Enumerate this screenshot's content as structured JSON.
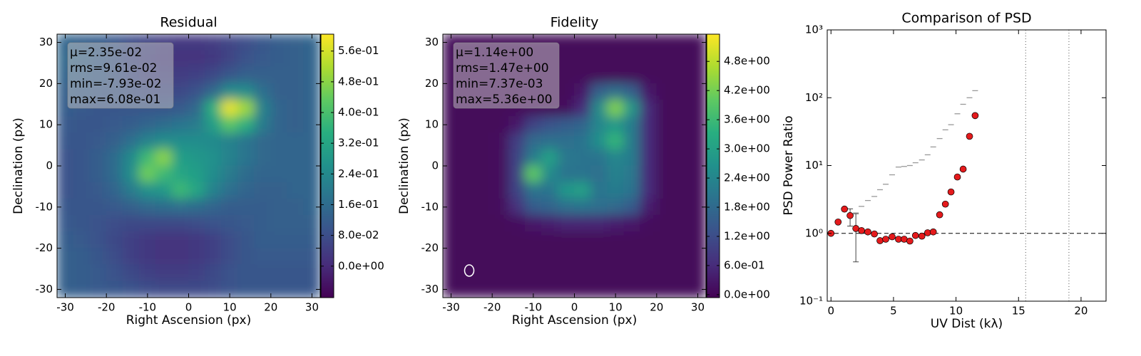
{
  "chart_data": [
    {
      "type": "heatmap",
      "title": "Residual",
      "xlabel": "Right Ascension (px)",
      "ylabel": "Declination (px)",
      "colormap": "viridis",
      "xlim": [
        -32,
        32
      ],
      "ylim": [
        -32,
        32
      ],
      "xticks": [
        -30,
        -20,
        -10,
        0,
        10,
        20,
        30
      ],
      "yticks": [
        -30,
        -20,
        -10,
        0,
        10,
        20,
        30
      ],
      "clim": [
        -0.082,
        0.604
      ],
      "cticks": [
        {
          "value": 0,
          "label": "0.0e+00"
        },
        {
          "value": 0.08,
          "label": "8.0e-02"
        },
        {
          "value": 0.16,
          "label": "1.6e-01"
        },
        {
          "value": 0.24,
          "label": "2.4e-01"
        },
        {
          "value": 0.32,
          "label": "3.2e-01"
        },
        {
          "value": 0.4,
          "label": "4.0e-01"
        },
        {
          "value": 0.48,
          "label": "4.8e-01"
        },
        {
          "value": 0.56,
          "label": "5.6e-01"
        }
      ],
      "stats": [
        "μ=2.35e-02",
        "rms=9.61e-02",
        "min=-7.93e-02",
        "max=6.08e-01"
      ],
      "x": [
        -30,
        -26,
        -22,
        -18,
        -14,
        -10,
        -6,
        -2,
        2,
        6,
        10,
        14,
        18,
        22,
        26,
        30
      ],
      "y": [
        30,
        26,
        22,
        18,
        14,
        10,
        6,
        2,
        -2,
        -6,
        -10,
        -14,
        -18,
        -22,
        -26,
        -30
      ],
      "z": [
        [
          0.14,
          0.13,
          0.12,
          0.1,
          0.08,
          0.06,
          0.04,
          0.03,
          0.03,
          0.04,
          0.06,
          0.08,
          0.1,
          0.12,
          0.13,
          0.14
        ],
        [
          0.15,
          0.14,
          0.12,
          0.1,
          0.07,
          0.05,
          0.03,
          0.02,
          0.02,
          0.03,
          0.06,
          0.09,
          0.11,
          0.12,
          0.13,
          0.14
        ],
        [
          0.14,
          0.13,
          0.12,
          0.1,
          0.08,
          0.06,
          0.05,
          0.04,
          0.05,
          0.07,
          0.1,
          0.13,
          0.13,
          0.13,
          0.13,
          0.14
        ],
        [
          0.13,
          0.12,
          0.11,
          0.1,
          0.09,
          0.08,
          0.07,
          0.07,
          0.09,
          0.15,
          0.25,
          0.25,
          0.17,
          0.13,
          0.13,
          0.14
        ],
        [
          0.12,
          0.11,
          0.1,
          0.1,
          0.1,
          0.1,
          0.1,
          0.11,
          0.15,
          0.35,
          0.58,
          0.5,
          0.22,
          0.14,
          0.13,
          0.14
        ],
        [
          0.11,
          0.1,
          0.1,
          0.11,
          0.12,
          0.14,
          0.16,
          0.18,
          0.2,
          0.3,
          0.42,
          0.35,
          0.2,
          0.14,
          0.13,
          0.14
        ],
        [
          0.1,
          0.1,
          0.11,
          0.13,
          0.17,
          0.22,
          0.25,
          0.25,
          0.25,
          0.24,
          0.22,
          0.18,
          0.15,
          0.14,
          0.14,
          0.14
        ],
        [
          0.09,
          0.1,
          0.12,
          0.16,
          0.24,
          0.38,
          0.48,
          0.3,
          0.28,
          0.26,
          0.22,
          0.18,
          0.15,
          0.14,
          0.14,
          0.14
        ],
        [
          0.09,
          0.1,
          0.12,
          0.16,
          0.25,
          0.45,
          0.38,
          0.32,
          0.3,
          0.25,
          0.2,
          0.16,
          0.14,
          0.14,
          0.14,
          0.14
        ],
        [
          0.09,
          0.1,
          0.11,
          0.14,
          0.2,
          0.26,
          0.28,
          0.38,
          0.32,
          0.22,
          0.17,
          0.14,
          0.13,
          0.13,
          0.14,
          0.14
        ],
        [
          0.1,
          0.1,
          0.1,
          0.11,
          0.13,
          0.15,
          0.16,
          0.17,
          0.16,
          0.14,
          0.12,
          0.12,
          0.12,
          0.13,
          0.13,
          0.14
        ],
        [
          0.11,
          0.1,
          0.09,
          0.08,
          0.07,
          0.07,
          0.07,
          0.07,
          0.08,
          0.09,
          0.1,
          0.11,
          0.12,
          0.13,
          0.13,
          0.13
        ],
        [
          0.12,
          0.11,
          0.09,
          0.07,
          0.05,
          0.03,
          0.02,
          0.02,
          0.03,
          0.05,
          0.08,
          0.1,
          0.12,
          0.12,
          0.12,
          0.12
        ],
        [
          0.13,
          0.12,
          0.1,
          0.08,
          0.05,
          0.03,
          0.02,
          0.02,
          0.03,
          0.05,
          0.08,
          0.1,
          0.11,
          0.11,
          0.11,
          0.11
        ],
        [
          0.13,
          0.12,
          0.11,
          0.09,
          0.07,
          0.05,
          0.04,
          0.04,
          0.05,
          0.07,
          0.09,
          0.1,
          0.1,
          0.1,
          0.1,
          0.1
        ],
        [
          0.13,
          0.12,
          0.11,
          0.1,
          0.09,
          0.08,
          0.07,
          0.07,
          0.07,
          0.08,
          0.09,
          0.1,
          0.1,
          0.1,
          0.1,
          0.1
        ]
      ]
    },
    {
      "type": "heatmap",
      "title": "Fidelity",
      "xlabel": "Right Ascension (px)",
      "ylabel": "Declination (px)",
      "colormap": "viridis",
      "xlim": [
        -32,
        32
      ],
      "ylim": [
        -32,
        32
      ],
      "xticks": [
        -30,
        -20,
        -10,
        0,
        10,
        20,
        30
      ],
      "yticks": [
        -30,
        -20,
        -10,
        0,
        10,
        20,
        30
      ],
      "clim": [
        -0.06,
        5.36
      ],
      "cticks": [
        {
          "value": 0,
          "label": "0.0e+00"
        },
        {
          "value": 0.6,
          "label": "6.0e-01"
        },
        {
          "value": 1.2,
          "label": "1.2e+00"
        },
        {
          "value": 1.8,
          "label": "1.8e+00"
        },
        {
          "value": 2.4,
          "label": "2.4e+00"
        },
        {
          "value": 3.0,
          "label": "3.0e+00"
        },
        {
          "value": 3.6,
          "label": "3.6e+00"
        },
        {
          "value": 4.2,
          "label": "4.2e+00"
        },
        {
          "value": 4.8,
          "label": "4.8e+00"
        }
      ],
      "stats": [
        "μ=1.14e+00",
        "rms=1.47e+00",
        "min=7.37e-03",
        "max=5.36e+00"
      ],
      "x": [
        -30,
        -26,
        -22,
        -18,
        -14,
        -10,
        -6,
        -2,
        2,
        6,
        10,
        14,
        18,
        22,
        26,
        30
      ],
      "y": [
        30,
        26,
        22,
        18,
        14,
        10,
        6,
        2,
        -2,
        -6,
        -10,
        -14,
        -18,
        -22,
        -26,
        -30
      ],
      "z": [
        [
          0.05,
          0.05,
          0.05,
          0.05,
          0.05,
          0.05,
          0.05,
          0.05,
          0.05,
          0.05,
          0.05,
          0.05,
          0.05,
          0.05,
          0.05,
          0.05
        ],
        [
          0.05,
          0.05,
          0.05,
          0.05,
          0.05,
          0.05,
          0.05,
          0.05,
          0.05,
          0.05,
          0.05,
          0.05,
          0.05,
          0.05,
          0.05,
          0.05
        ],
        [
          0.05,
          0.05,
          0.05,
          0.05,
          0.05,
          0.05,
          0.05,
          0.05,
          0.05,
          0.05,
          0.05,
          0.05,
          0.05,
          0.05,
          0.05,
          0.05
        ],
        [
          0.05,
          0.05,
          0.05,
          0.05,
          0.05,
          0.05,
          0.05,
          0.05,
          0.3,
          1.6,
          1.9,
          1.6,
          0.3,
          0.05,
          0.05,
          0.05
        ],
        [
          0.05,
          0.05,
          0.05,
          0.05,
          0.05,
          0.05,
          0.05,
          0.1,
          0.6,
          2.5,
          4.3,
          2.8,
          0.6,
          0.05,
          0.05,
          0.05
        ],
        [
          0.05,
          0.05,
          0.05,
          0.05,
          0.3,
          1.0,
          1.3,
          1.5,
          1.7,
          2.4,
          2.8,
          2.2,
          0.6,
          0.05,
          0.05,
          0.05
        ],
        [
          0.05,
          0.05,
          0.05,
          0.1,
          0.9,
          1.8,
          1.9,
          1.9,
          2.0,
          2.6,
          3.5,
          2.2,
          0.6,
          0.05,
          0.05,
          0.05
        ],
        [
          0.05,
          0.05,
          0.05,
          0.1,
          1.0,
          2.2,
          3.0,
          2.1,
          2.0,
          2.0,
          2.4,
          2.2,
          0.6,
          0.05,
          0.05,
          0.05
        ],
        [
          0.05,
          0.05,
          0.05,
          0.1,
          1.0,
          4.0,
          2.5,
          2.0,
          2.0,
          1.9,
          2.3,
          2.1,
          0.6,
          0.05,
          0.05,
          0.05
        ],
        [
          0.05,
          0.05,
          0.05,
          0.1,
          1.0,
          2.0,
          2.0,
          2.8,
          3.0,
          2.0,
          2.2,
          2.0,
          0.6,
          0.05,
          0.05,
          0.05
        ],
        [
          0.05,
          0.05,
          0.05,
          0.1,
          0.7,
          1.5,
          1.7,
          1.9,
          2.0,
          1.9,
          1.8,
          1.5,
          0.4,
          0.05,
          0.05,
          0.05
        ],
        [
          0.05,
          0.05,
          0.05,
          0.05,
          0.1,
          0.3,
          0.4,
          0.5,
          0.5,
          0.5,
          0.4,
          0.3,
          0.1,
          0.05,
          0.05,
          0.05
        ],
        [
          0.05,
          0.05,
          0.05,
          0.05,
          0.05,
          0.05,
          0.05,
          0.05,
          0.05,
          0.05,
          0.05,
          0.05,
          0.05,
          0.05,
          0.05,
          0.05
        ],
        [
          0.05,
          0.05,
          0.05,
          0.05,
          0.05,
          0.05,
          0.05,
          0.05,
          0.05,
          0.05,
          0.05,
          0.05,
          0.05,
          0.05,
          0.05,
          0.05
        ],
        [
          0.05,
          0.05,
          0.05,
          0.05,
          0.05,
          0.05,
          0.05,
          0.05,
          0.05,
          0.05,
          0.05,
          0.05,
          0.05,
          0.05,
          0.05,
          0.05
        ],
        [
          0.05,
          0.05,
          0.05,
          0.05,
          0.05,
          0.05,
          0.05,
          0.05,
          0.05,
          0.05,
          0.05,
          0.05,
          0.05,
          0.05,
          0.05,
          0.05
        ]
      ]
    },
    {
      "type": "scatter",
      "title": "Comparison of PSD",
      "xlabel": "UV Dist (kλ)",
      "ylabel": "PSD Power Ratio",
      "xlim": [
        -0.3,
        22
      ],
      "ylim": [
        0.1,
        1000
      ],
      "ylog": true,
      "xticks": [
        0,
        5,
        10,
        15,
        20
      ],
      "yticks": [
        {
          "value": 0.1,
          "label": "10⁻¹"
        },
        {
          "value": 1,
          "label": "10⁰"
        },
        {
          "value": 10,
          "label": "10¹"
        },
        {
          "value": 100,
          "label": "10²"
        },
        {
          "value": 1000,
          "label": "10³"
        }
      ],
      "series": [
        {
          "color": "#999999",
          "marker": "_",
          "x": [
            1.99,
            2.44,
            2.95,
            3.47,
            3.92,
            4.38,
            4.89,
            5.4,
            5.85,
            6.31,
            6.76,
            7.27,
            7.73,
            8.18,
            8.69,
            9.15,
            9.6,
            10.11,
            10.57,
            11.08,
            11.53
          ],
          "values": [
            2.0,
            2.5,
            3.05,
            3.5,
            4.4,
            5.3,
            7.3,
            9.5,
            9.7,
            10.0,
            11.0,
            12.1,
            14.4,
            18.8,
            25,
            33.6,
            40,
            58,
            80,
            100,
            127
          ]
        },
        {
          "color": "#e41a1c",
          "marker": "o",
          "x": [
            0,
            0.57,
            1.08,
            1.53,
            1.99,
            2.44,
            2.95,
            3.47,
            3.92,
            4.38,
            4.89,
            5.4,
            5.85,
            6.31,
            6.76,
            7.27,
            7.73,
            8.18,
            8.69,
            9.15,
            9.6,
            10.11,
            10.57,
            11.08,
            11.53
          ],
          "values": [
            1.0,
            1.47,
            2.28,
            1.83,
            1.18,
            1.1,
            1.05,
            0.98,
            0.78,
            0.82,
            0.89,
            0.82,
            0.82,
            0.77,
            0.93,
            0.91,
            1.02,
            1.05,
            1.88,
            2.7,
            4.08,
            6.78,
            8.86,
            27.0,
            54.5
          ]
        }
      ],
      "errorbars": [
        {
          "x": 1.53,
          "low": 1.28,
          "high": 2.3
        },
        {
          "x": 1.99,
          "low": 0.38,
          "high": 1.95
        }
      ],
      "hlines": [
        1
      ],
      "vlines": [
        15.57,
        19.03
      ]
    }
  ]
}
